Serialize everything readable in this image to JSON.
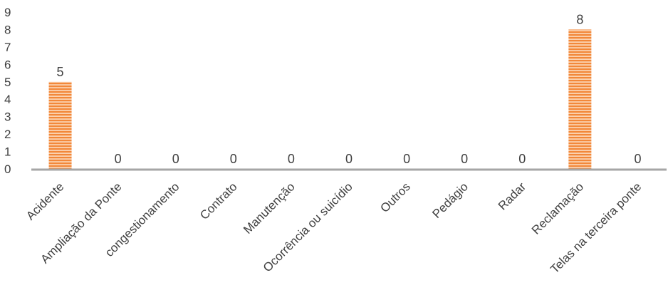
{
  "chart_data": {
    "type": "bar",
    "categories": [
      "Acidente",
      "Ampliação da Ponte",
      "congestionamento",
      "Contrato",
      "Manutenção",
      "Ocorrência ou suicídio",
      "Outros",
      "Pedágio",
      "Radar",
      "Reclamação",
      "Telas na terceira ponte"
    ],
    "values": [
      5,
      0,
      0,
      0,
      0,
      0,
      0,
      0,
      0,
      8,
      0
    ],
    "ylim": [
      0,
      9
    ],
    "yticks": [
      0,
      1,
      2,
      3,
      4,
      5,
      6,
      7,
      8,
      9
    ],
    "title": "",
    "xlabel": "",
    "ylabel": "",
    "grid": false,
    "legend": "none",
    "show_data_labels": true,
    "bar_color": "#f2883a",
    "bar_stripe_color": "#fbd2b0",
    "axis_color": "#a6a6a6",
    "text_color": "#404040"
  }
}
